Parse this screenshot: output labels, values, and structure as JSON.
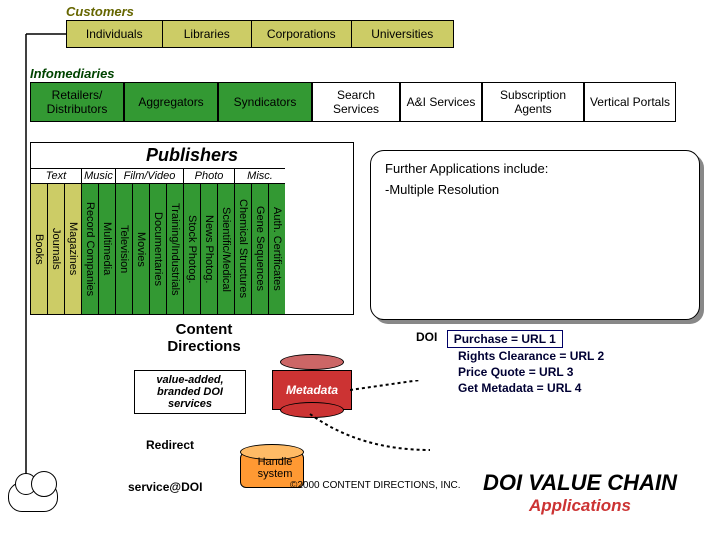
{
  "customers": {
    "label": "Customers",
    "label_color": "#666600",
    "bar_bg": "#cccc66",
    "items": [
      {
        "label": "Individuals",
        "width": 96
      },
      {
        "label": "Libraries",
        "width": 90
      },
      {
        "label": "Corporations",
        "width": 100
      },
      {
        "label": "Universities",
        "width": 102
      }
    ]
  },
  "infomediaries": {
    "label": "Infomediaries",
    "label_color": "#004400",
    "items": [
      {
        "label": "Retailers/ Distributors",
        "width": 94,
        "bg": "#339933"
      },
      {
        "label": "Aggregators",
        "width": 94,
        "bg": "#339933"
      },
      {
        "label": "Syndicators",
        "width": 94,
        "bg": "#339933"
      },
      {
        "label": "Search Services",
        "width": 88,
        "bg": "#ffffff"
      },
      {
        "label": "A&I Services",
        "width": 82,
        "bg": "#ffffff"
      },
      {
        "label": "Subscription Agents",
        "width": 102,
        "bg": "#ffffff"
      },
      {
        "label": "Vertical Portals",
        "width": 92,
        "bg": "#ffffff"
      }
    ]
  },
  "publishers": {
    "title": "Publishers",
    "categories": [
      {
        "label": "Text",
        "bg": "#cccc66",
        "items": [
          "Books",
          "Journals",
          "Magazines"
        ]
      },
      {
        "label": "Music",
        "bg": "#339933",
        "items": [
          "Record Companies",
          "Multimedia"
        ]
      },
      {
        "label": "Film/Video",
        "bg": "#339933",
        "items": [
          "Television",
          "Movies",
          "Documentaries",
          "Training/Industrials"
        ]
      },
      {
        "label": "Photo",
        "bg": "#339933",
        "items": [
          "Stock Photog.",
          "News Photog.",
          "Scientific/Medical"
        ]
      },
      {
        "label": "Misc.",
        "bg": "#339933",
        "items": [
          "Chemical Structures",
          "Gene Sequences",
          "Auth. Certificates"
        ]
      }
    ]
  },
  "further": {
    "heading": "Further Applications include:",
    "line1": "-Multiple Resolution"
  },
  "content_directions": {
    "title_l1": "Content",
    "title_l2": "Directions",
    "va_box": "value-added, branded DOI services",
    "metadata": "Metadata",
    "redirect": "Redirect",
    "service": "service@DOI",
    "handle": "Handle system"
  },
  "doi_map": {
    "doi_label": "DOI",
    "box": "Purchase = URL 1",
    "lines": [
      "Rights Clearance = URL 2",
      "Price Quote = URL 3",
      "Get Metadata = URL 4"
    ]
  },
  "value_chain": {
    "main": "DOI VALUE CHAIN",
    "sub": "Applications"
  },
  "copyright": "©2000 CONTENT DIRECTIONS, INC.",
  "colors": {
    "olive": "#cccc66",
    "green": "#339933",
    "red": "#cc3333",
    "orange": "#ff9933"
  }
}
